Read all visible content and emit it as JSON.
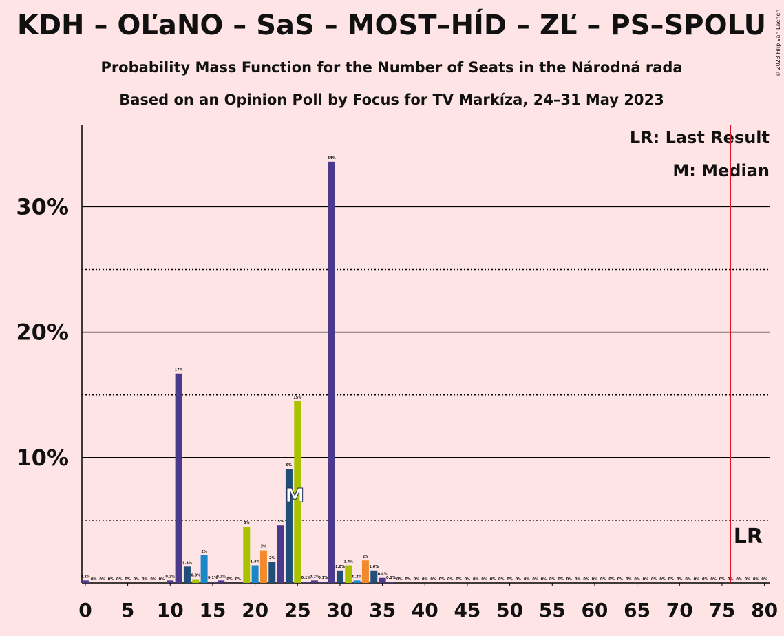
{
  "chart_data": {
    "type": "bar",
    "title": "KDH – OĽaNO – SaS – MOST–HÍD – ZĽ – PS–SPOLU",
    "subtitle": "Probability Mass Function for the Number of Seats in the Národná rada",
    "subtitle2": "Based on an Opinion Poll by Focus for TV Markíza, 24–31 May 2023",
    "copyright": "© 2023 Filip van Laenen",
    "legend": [
      "LR: Last Result",
      "M: Median"
    ],
    "last_result": 76,
    "last_result_label": "LR",
    "median": 25,
    "median_label": "M",
    "x": [
      0,
      1,
      2,
      3,
      4,
      5,
      6,
      7,
      8,
      9,
      10,
      11,
      12,
      13,
      14,
      15,
      16,
      17,
      18,
      19,
      20,
      21,
      22,
      23,
      24,
      25,
      26,
      27,
      28,
      29,
      30,
      31,
      32,
      33,
      34,
      35,
      36,
      37,
      38,
      39,
      40,
      41,
      42,
      43,
      44,
      45,
      46,
      47,
      48,
      49,
      50,
      51,
      52,
      53,
      54,
      55,
      56,
      57,
      58,
      59,
      60,
      61,
      62,
      63,
      64,
      65,
      66,
      67,
      68,
      69,
      70,
      71,
      72,
      73,
      74,
      75,
      76,
      77,
      78,
      79,
      80
    ],
    "values": [
      0.2,
      0,
      0,
      0,
      0,
      0,
      0,
      0,
      0,
      0,
      0.2,
      16.7,
      1.3,
      0.3,
      2.2,
      0.1,
      0.2,
      0,
      0,
      4.5,
      1.4,
      2.6,
      1.7,
      4.6,
      9.1,
      14.5,
      0.1,
      0.2,
      0.1,
      33.6,
      1.0,
      1.4,
      0.2,
      1.8,
      1.0,
      0.4,
      0.1,
      0,
      0,
      0,
      0,
      0,
      0,
      0,
      0,
      0,
      0,
      0,
      0,
      0,
      0,
      0,
      0,
      0,
      0,
      0,
      0,
      0,
      0,
      0,
      0,
      0,
      0,
      0,
      0,
      0,
      0,
      0,
      0,
      0,
      0,
      0,
      0,
      0,
      0,
      0,
      0,
      0,
      0,
      0,
      0
    ],
    "value_labels": [
      "0.2%",
      "0%",
      "0%",
      "0%",
      "0%",
      "0%",
      "0%",
      "0%",
      "0%",
      "0%",
      "0.2%",
      "17%",
      "1.3%",
      "0.3%",
      "2%",
      "0.1%",
      "0.2%",
      "0%",
      "0%",
      "5%",
      "1.4%",
      "3%",
      "2%",
      "5%",
      "9%",
      "15%",
      "0.1%",
      "0.2%",
      "0.1%",
      "34%",
      "1.0%",
      "1.4%",
      "0.2%",
      "2%",
      "1.0%",
      "0.4%",
      "0.1%",
      "0%",
      "0%",
      "0%",
      "0%",
      "0%",
      "0%",
      "0%",
      "0%",
      "0%",
      "0%",
      "0%",
      "0%",
      "0%",
      "0%",
      "0%",
      "0%",
      "0%",
      "0%",
      "0%",
      "0%",
      "0%",
      "0%",
      "0%",
      "0%",
      "0%",
      "0%",
      "0%",
      "0%",
      "0%",
      "0%",
      "0%",
      "0%",
      "0%",
      "0%",
      "0%",
      "0%",
      "0%",
      "0%",
      "0%",
      "0%",
      "0%",
      "0%",
      "0%",
      "0%"
    ],
    "colors": [
      "#4b3a8c",
      "#4b3a8c",
      "#4b3a8c",
      "#4b3a8c",
      "#4b3a8c",
      "#4b3a8c",
      "#4b3a8c",
      "#4b3a8c",
      "#4b3a8c",
      "#4b3a8c",
      "#4b3a8c",
      "#4b3a8c",
      "#1f4e79",
      "#a9c200",
      "#1b86c8",
      "#4b3a8c",
      "#4b3a8c",
      "#4b3a8c",
      "#4b3a8c",
      "#a9c200",
      "#1b86c8",
      "#f28a2c",
      "#1f4e79",
      "#4b3a8c",
      "#1f4e79",
      "#a9c200",
      "#4b3a8c",
      "#4b3a8c",
      "#4b3a8c",
      "#4b3a8c",
      "#1f4e79",
      "#a9c200",
      "#1b86c8",
      "#f28a2c",
      "#1f4e79",
      "#4b3a8c",
      "#4b3a8c",
      "#4b3a8c",
      "#4b3a8c",
      "#4b3a8c",
      "#4b3a8c",
      "#4b3a8c",
      "#4b3a8c",
      "#4b3a8c",
      "#4b3a8c",
      "#4b3a8c",
      "#4b3a8c",
      "#4b3a8c",
      "#4b3a8c",
      "#4b3a8c",
      "#4b3a8c",
      "#4b3a8c",
      "#4b3a8c",
      "#4b3a8c",
      "#4b3a8c",
      "#4b3a8c",
      "#4b3a8c",
      "#4b3a8c",
      "#4b3a8c",
      "#4b3a8c",
      "#4b3a8c",
      "#4b3a8c",
      "#4b3a8c",
      "#4b3a8c",
      "#4b3a8c",
      "#4b3a8c",
      "#4b3a8c",
      "#4b3a8c",
      "#4b3a8c",
      "#4b3a8c",
      "#4b3a8c",
      "#4b3a8c",
      "#4b3a8c",
      "#4b3a8c",
      "#4b3a8c",
      "#4b3a8c",
      "#4b3a8c",
      "#4b3a8c",
      "#4b3a8c",
      "#4b3a8c",
      "#4b3a8c"
    ],
    "xlim": [
      -0.4,
      80.6
    ],
    "xticks": [
      0,
      5,
      10,
      15,
      20,
      25,
      30,
      35,
      40,
      45,
      50,
      55,
      60,
      65,
      70,
      75,
      80
    ],
    "ylim": [
      0,
      36.5
    ],
    "yticks": [
      {
        "value": 10,
        "label": "10%"
      },
      {
        "value": 20,
        "label": "20%"
      },
      {
        "value": 30,
        "label": "30%"
      }
    ],
    "minor_yticks": [
      5,
      15,
      25
    ],
    "grid": true
  }
}
